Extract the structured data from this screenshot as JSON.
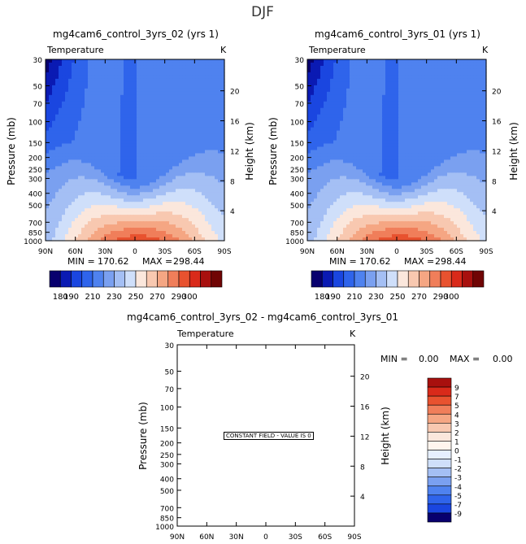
{
  "season": "DJF",
  "panels": [
    {
      "title": "mg4cam6_control_3yrs_02 (yrs 1)",
      "variable": "Temperature",
      "units": "K",
      "min_label": "MIN =",
      "min_value": "170.62",
      "max_label": "MAX =",
      "max_value": "298.44"
    },
    {
      "title": "mg4cam6_control_3yrs_01 (yrs 1)",
      "variable": "Temperature",
      "units": "K",
      "min_label": "MIN =",
      "min_value": "170.62",
      "max_label": "MAX =",
      "max_value": "298.44"
    }
  ],
  "diff_panel": {
    "title": "mg4cam6_control_3yrs_02 - mg4cam6_control_3yrs_01",
    "variable": "Temperature",
    "units": "K",
    "min_label": "MIN =",
    "min_value": "0.00",
    "max_label": "MAX =",
    "max_value": "0.00",
    "constant_text": "CONSTANT FIELD - VALUE IS 0"
  },
  "chart_data": [
    {
      "type": "heatmap",
      "title": "mg4cam6_control_3yrs_02 (yrs 1)",
      "xlabel": "",
      "ylabel": "Pressure (mb)",
      "y2label": "Height (km)",
      "x_ticks": [
        "90N",
        "60N",
        "30N",
        "0",
        "30S",
        "60S",
        "90S"
      ],
      "y_ticks": [
        30,
        50,
        70,
        100,
        150,
        200,
        250,
        300,
        400,
        500,
        700,
        850,
        1000
      ],
      "y2_ticks": [
        4,
        8,
        12,
        16,
        20
      ],
      "contour_levels": [
        180,
        190,
        200,
        210,
        220,
        230,
        240,
        250,
        260,
        270,
        280,
        290,
        300
      ],
      "colorbar_labels": [
        "180",
        "190",
        "210",
        "230",
        "250",
        "270",
        "290",
        "300"
      ],
      "colors": [
        "#08006e",
        "#0a1ab3",
        "#1a46e0",
        "#2f64eb",
        "#4f82ef",
        "#7aa0f0",
        "#a4bff4",
        "#cfdffa",
        "#fbe7dc",
        "#f8c8b0",
        "#f5a683",
        "#f07e5a",
        "#e8522f",
        "#d92a1a",
        "#a8100e",
        "#700404"
      ],
      "min": 170.62,
      "max": 298.44,
      "ylim": [
        1000,
        30
      ],
      "xlim": [
        "90N",
        "90S"
      ]
    },
    {
      "type": "heatmap",
      "title": "mg4cam6_control_3yrs_01 (yrs 1)",
      "xlabel": "",
      "ylabel": "Pressure (mb)",
      "y2label": "Height (km)",
      "x_ticks": [
        "90N",
        "60N",
        "30N",
        "0",
        "30S",
        "60S",
        "90S"
      ],
      "y_ticks": [
        30,
        50,
        70,
        100,
        150,
        200,
        250,
        300,
        400,
        500,
        700,
        850,
        1000
      ],
      "y2_ticks": [
        4,
        8,
        12,
        16,
        20
      ],
      "contour_levels": [
        180,
        190,
        200,
        210,
        220,
        230,
        240,
        250,
        260,
        270,
        280,
        290,
        300
      ],
      "colorbar_labels": [
        "180",
        "190",
        "210",
        "230",
        "250",
        "270",
        "290",
        "300"
      ],
      "colors": [
        "#08006e",
        "#0a1ab3",
        "#1a46e0",
        "#2f64eb",
        "#4f82ef",
        "#7aa0f0",
        "#a4bff4",
        "#cfdffa",
        "#fbe7dc",
        "#f8c8b0",
        "#f5a683",
        "#f07e5a",
        "#e8522f",
        "#d92a1a",
        "#a8100e",
        "#700404"
      ],
      "min": 170.62,
      "max": 298.44,
      "ylim": [
        1000,
        30
      ],
      "xlim": [
        "90N",
        "90S"
      ]
    },
    {
      "type": "heatmap",
      "title": "mg4cam6_control_3yrs_02 - mg4cam6_control_3yrs_01",
      "xlabel": "",
      "ylabel": "Pressure (mb)",
      "y2label": "Height (km)",
      "x_ticks": [
        "90N",
        "60N",
        "30N",
        "0",
        "30S",
        "60S",
        "90S"
      ],
      "y_ticks": [
        30,
        50,
        70,
        100,
        150,
        200,
        250,
        300,
        400,
        500,
        700,
        850,
        1000
      ],
      "y2_ticks": [
        4,
        8,
        12,
        16,
        20
      ],
      "colorbar_labels": [
        "9",
        "7",
        "5",
        "4",
        "3",
        "2",
        "1",
        "0",
        "-1",
        "-2",
        "-3",
        "-4",
        "-5",
        "-7",
        "-9"
      ],
      "colors": [
        "#a8100e",
        "#d92a1a",
        "#e8522f",
        "#f07e5a",
        "#f5a683",
        "#f8c8b0",
        "#fbe7dc",
        "#fff5ee",
        "#e6efff",
        "#cfdffa",
        "#a4bff4",
        "#7aa0f0",
        "#4f82ef",
        "#2f64eb",
        "#1a46e0",
        "#08006e"
      ],
      "min": 0.0,
      "max": 0.0,
      "ylim": [
        1000,
        30
      ],
      "xlim": [
        "90N",
        "90S"
      ]
    }
  ]
}
